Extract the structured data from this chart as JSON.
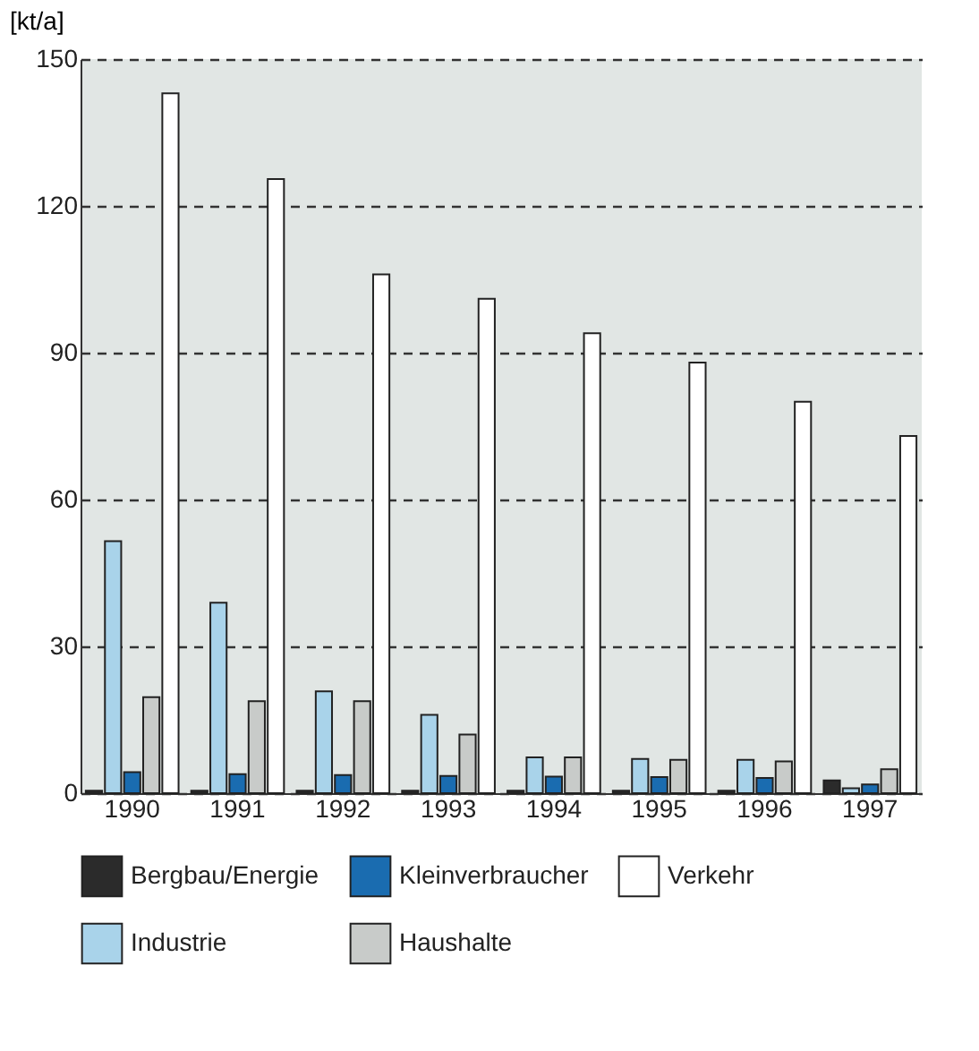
{
  "chart_data": {
    "type": "bar",
    "ylabel": "[kt/a]",
    "categories": [
      "1990",
      "1991",
      "1992",
      "1993",
      "1994",
      "1995",
      "1996",
      "1997"
    ],
    "series": [
      {
        "name": "Bergbau/Energie",
        "color": "#2b2b2b",
        "values": [
          0.5,
          0.5,
          0.5,
          0.5,
          0.5,
          0.5,
          0.5,
          2.6
        ]
      },
      {
        "name": "Industrie",
        "color": "#a9d3ea",
        "values": [
          51.5,
          38.9,
          20.8,
          16,
          7.3,
          7,
          6.8,
          1.0
        ]
      },
      {
        "name": "Kleinverbraucher",
        "color": "#1a6cb0",
        "values": [
          4.3,
          3.9,
          3.7,
          3.5,
          3.4,
          3.3,
          3.1,
          1.8
        ]
      },
      {
        "name": "Haushalte",
        "color": "#c8cbc9",
        "values": [
          19.6,
          18.8,
          18.8,
          12,
          7.3,
          6.8,
          6.5,
          4.9
        ]
      },
      {
        "name": "Verkehr",
        "color": "#ffffff",
        "values": [
          143,
          125.5,
          106,
          101,
          94,
          88,
          80,
          73
        ]
      }
    ],
    "ylim": [
      0,
      150
    ],
    "yticks": [
      0,
      30,
      60,
      90,
      120,
      150
    ],
    "grid": "y",
    "legend": "bottom"
  }
}
